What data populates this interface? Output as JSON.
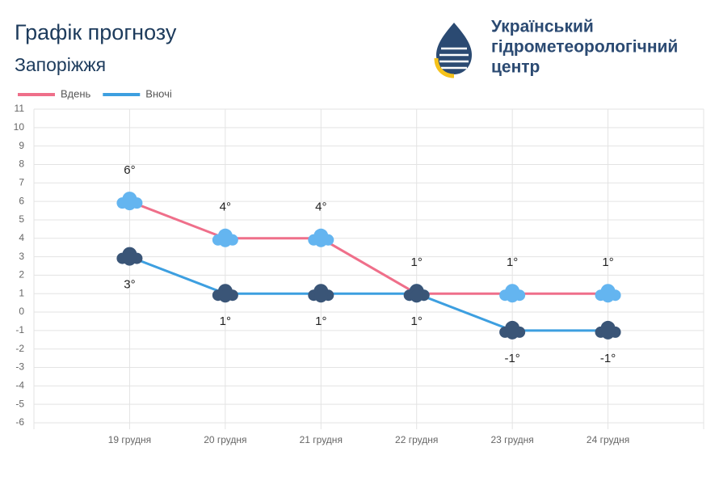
{
  "header": {
    "logo_lines": [
      "Український",
      "гідрометеорологічний",
      "центр"
    ]
  },
  "chart_data": {
    "type": "line",
    "title": "Графік прогнозу",
    "subtitle": "Запоріжжя",
    "categories": [
      "19 грудня",
      "20 грудня",
      "21 грудня",
      "22 грудня",
      "23 грудня",
      "24 грудня"
    ],
    "series": [
      {
        "name": "Вдень",
        "color": "#ef6f8a",
        "values": [
          6,
          4,
          4,
          1,
          1,
          1
        ],
        "value_labels": [
          "6°",
          "4°",
          "4°",
          "1°",
          "1°",
          "1°"
        ]
      },
      {
        "name": "Вночі",
        "color": "#3d9fe0",
        "values": [
          3,
          1,
          1,
          1,
          -1,
          -1
        ],
        "value_labels": [
          "3°",
          "1°",
          "1°",
          "1°",
          "-1°",
          "-1°"
        ]
      }
    ],
    "ylim": [
      -6,
      11
    ],
    "yticks": [
      -6,
      -5,
      -4,
      -3,
      -2,
      -1,
      0,
      1,
      2,
      3,
      4,
      5,
      6,
      7,
      8,
      9,
      10,
      11
    ],
    "grid": true,
    "legend": "top-left"
  }
}
